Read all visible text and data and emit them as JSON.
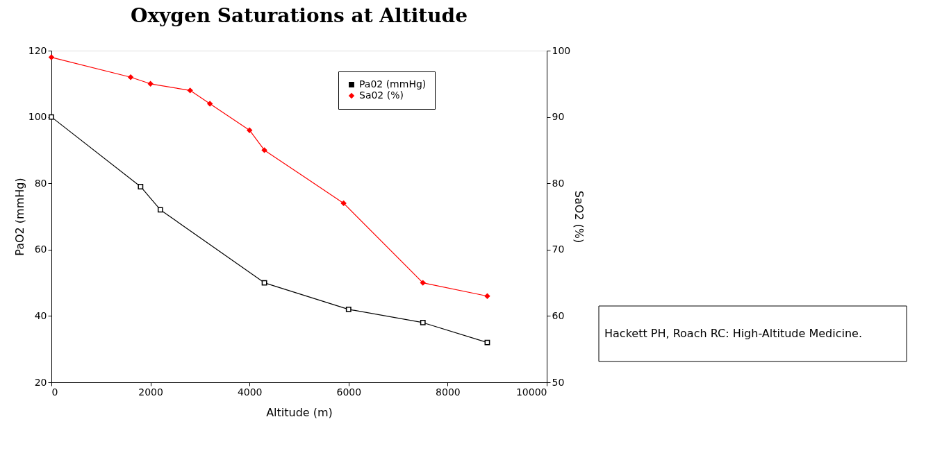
{
  "chart_data": {
    "type": "line",
    "title": "Oxygen Saturations at Altitude",
    "xlabel": "Altitude (m)",
    "ylabel": "PaO2 (mmHg)",
    "y2label": "SaO2 (%)",
    "xlim": [
      0,
      10000
    ],
    "xticks": [
      0,
      2000,
      4000,
      6000,
      8000,
      10000
    ],
    "ylim": [
      20,
      120
    ],
    "yticks": [
      20,
      40,
      60,
      80,
      100,
      120
    ],
    "y2lim": [
      50,
      100
    ],
    "y2ticks": [
      50,
      60,
      70,
      80,
      90,
      100
    ],
    "grid": false,
    "legend": "top right",
    "line_style": "solid",
    "series": [
      {
        "name": "Pa02 (mmHg)",
        "color": "#000000",
        "marker": "square",
        "x": [
          0,
          1800,
          2200,
          4300,
          6000,
          7500,
          8800
        ],
        "values": [
          100,
          79,
          72,
          50,
          42,
          38,
          32
        ]
      },
      {
        "name": "Sa02 (%)",
        "color": "#ff0000",
        "marker": "diamond",
        "axis": "y2",
        "x": [
          0,
          1600,
          2000,
          2800,
          3200,
          4000,
          4300,
          5900,
          7500,
          8800
        ],
        "values": [
          99,
          96,
          95,
          94,
          92,
          88,
          85,
          77,
          65,
          63
        ]
      }
    ],
    "annotations": [
      "Hackett PH, Roach RC: High-Altitude Medicine."
    ]
  }
}
